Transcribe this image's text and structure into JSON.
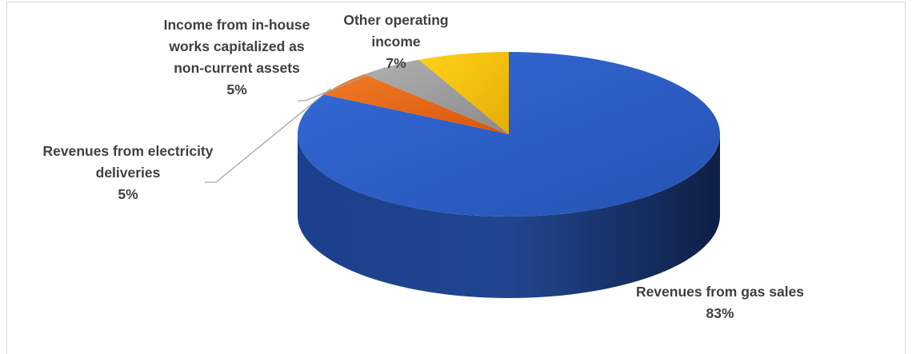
{
  "chart_data": {
    "type": "pie",
    "style": "3d-pie",
    "title": "",
    "legend": "none",
    "slices": [
      {
        "name": "Revenues from gas sales",
        "value": 83,
        "label": "83%",
        "color": "#2e5fc7"
      },
      {
        "name": "Revenues from electricity deliveries",
        "value": 5,
        "label": "5%",
        "color": "#ee6a17"
      },
      {
        "name": "Income from in-house works capitalized as non-current assets",
        "value": 5,
        "label": "5%",
        "color": "#9d9d9d"
      },
      {
        "name": "Other operating income",
        "value": 7,
        "label": "7%",
        "color": "#f5bf0b"
      }
    ]
  },
  "labels": {
    "gas": {
      "name": "Revenues from gas sales",
      "pct": "83%"
    },
    "electricity": {
      "name": "Revenues from electricity deliveries",
      "pct": "5%"
    },
    "inhouse": {
      "name": "Income from in-house works capitalized as non-current assets",
      "pct": "5%"
    },
    "other": {
      "name": "Other operating income",
      "pct": "7%"
    }
  }
}
